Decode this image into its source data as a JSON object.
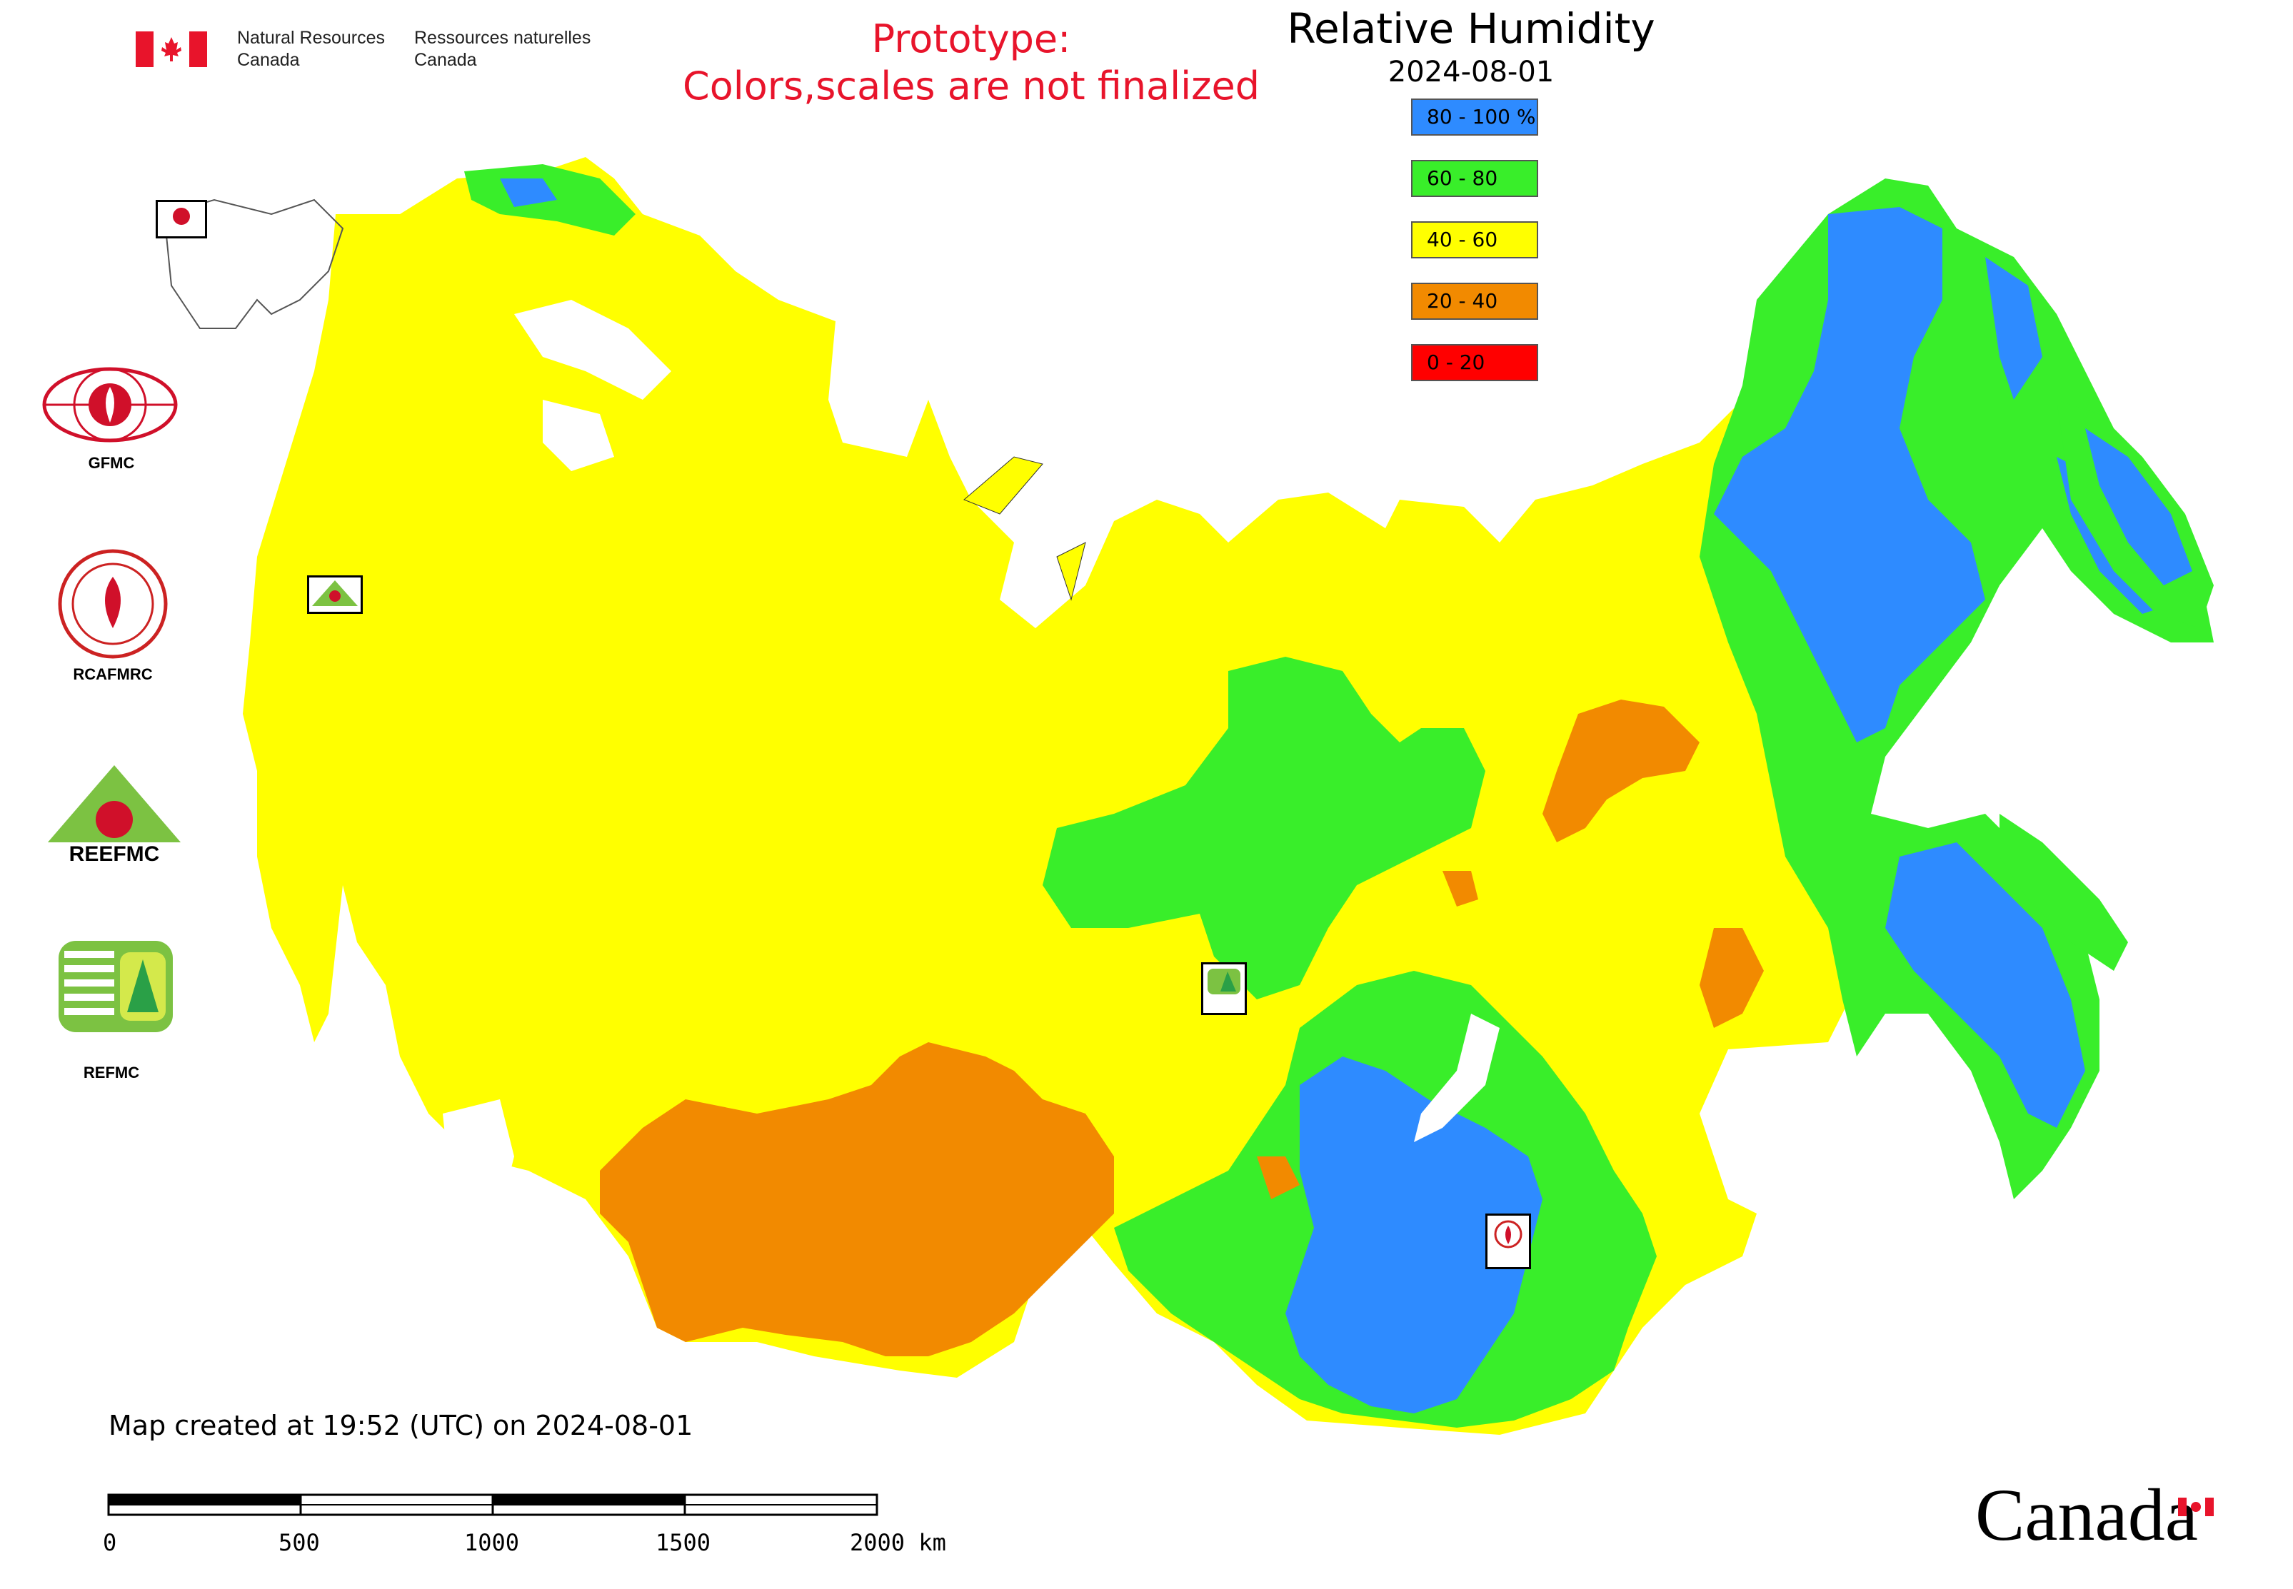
{
  "header": {
    "dept_en_line1": "Natural Resources",
    "dept_en_line2": "Canada",
    "dept_fr_line1": "Ressources naturelles",
    "dept_fr_line2": "Canada",
    "prototype_line1": "Prototype:",
    "prototype_line2": "Colors,scales are not finalized",
    "title": "Relative Humidity",
    "date": "2024-08-01"
  },
  "legend": [
    {
      "label": "80 - 100 %",
      "color": "#2e8bff"
    },
    {
      "label": "60 - 80",
      "color": "#39ee2a"
    },
    {
      "label": "40 - 60",
      "color": "#ffff00"
    },
    {
      "label": "20 - 40",
      "color": "#f28a00"
    },
    {
      "label": "0 - 20",
      "color": "#ff0000"
    }
  ],
  "logos": {
    "gfmc": "GFMC",
    "rcafmrc": "RCAFMRC",
    "reefmc": "REEFMC",
    "refmc": "REFMC",
    "map_marker_gfmc": "GFMC",
    "map_marker_rcafmrc": "RCAFMRC",
    "map_marker_refmc": "REFMC"
  },
  "footer": {
    "created": "Map created at 19:52 (UTC) on 2024-08-01",
    "scale_ticks": [
      "0",
      "500",
      "1000",
      "1500",
      "2000 km"
    ],
    "wordmark": "Canada"
  }
}
